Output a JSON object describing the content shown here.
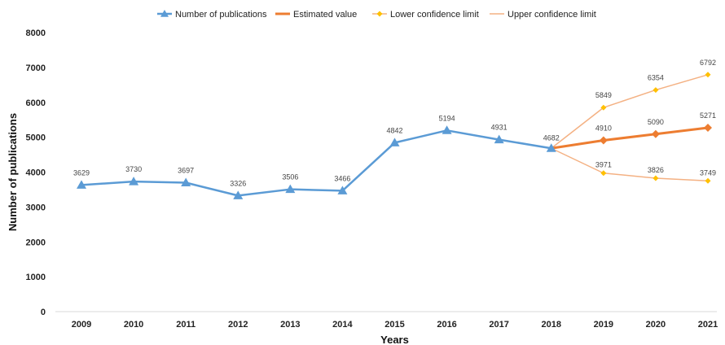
{
  "chart_data": {
    "type": "line",
    "xlabel": "Years",
    "ylabel": "Number of publications",
    "ylim": [
      0,
      8000
    ],
    "y_ticks": [
      0,
      1000,
      2000,
      3000,
      4000,
      5000,
      6000,
      7000,
      8000
    ],
    "x_ticks": [
      "2009",
      "2010",
      "2011",
      "2012",
      "2013",
      "2014",
      "2015",
      "2016",
      "2017",
      "2018",
      "2019",
      "2020",
      "2021"
    ],
    "legend_position": "top-center",
    "grid": false,
    "series": [
      {
        "name": "Number of publications",
        "color": "#5b9bd5",
        "marker": "triangle",
        "points": [
          {
            "x": "2009",
            "y": 3629
          },
          {
            "x": "2010",
            "y": 3730
          },
          {
            "x": "2011",
            "y": 3697
          },
          {
            "x": "2012",
            "y": 3326
          },
          {
            "x": "2013",
            "y": 3506
          },
          {
            "x": "2014",
            "y": 3466
          },
          {
            "x": "2015",
            "y": 4842
          },
          {
            "x": "2016",
            "y": 5194
          },
          {
            "x": "2017",
            "y": 4931
          },
          {
            "x": "2018",
            "y": 4682
          }
        ]
      },
      {
        "name": "Estimated value",
        "color": "#ed7d31",
        "marker": "diamond",
        "points": [
          {
            "x": "2018",
            "y": 4682
          },
          {
            "x": "2019",
            "y": 4910
          },
          {
            "x": "2020",
            "y": 5090
          },
          {
            "x": "2021",
            "y": 5271
          }
        ]
      },
      {
        "name": "Lower confidence limit",
        "color": "#f4b183",
        "marker_color": "#ffc000",
        "marker": "diamond",
        "points": [
          {
            "x": "2018",
            "y": 4682
          },
          {
            "x": "2019",
            "y": 3971
          },
          {
            "x": "2020",
            "y": 3826
          },
          {
            "x": "2021",
            "y": 3749
          }
        ]
      },
      {
        "name": "Upper confidence limit",
        "color": "#f4b183",
        "marker_color": "#ffc000",
        "marker": "diamond",
        "points": [
          {
            "x": "2018",
            "y": 4682
          },
          {
            "x": "2019",
            "y": 5849
          },
          {
            "x": "2020",
            "y": 6354
          },
          {
            "x": "2021",
            "y": 6792
          }
        ]
      }
    ]
  }
}
